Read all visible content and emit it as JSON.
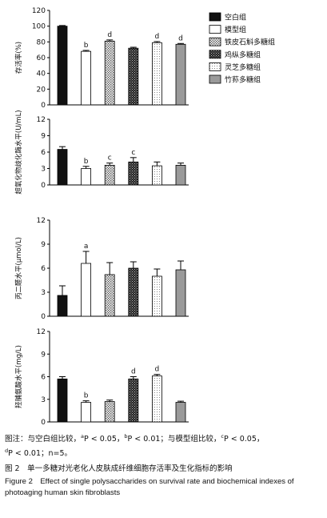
{
  "legend": [
    {
      "label": "空白组",
      "fill": "black"
    },
    {
      "label": "模型组",
      "fill": "white"
    },
    {
      "label": "铁皮石斛多糖组",
      "fill": "dots"
    },
    {
      "label": "鸡纵多糖组",
      "fill": "dense"
    },
    {
      "label": "灵芝多糖组",
      "fill": "finedots"
    },
    {
      "label": "竹荪多糖组",
      "fill": "gray"
    }
  ],
  "colors": {
    "black": "#111111",
    "gray": "#9a9a9a",
    "dots": "#b5b5b5",
    "dense": "#3a3a3a",
    "white": "#ffffff"
  },
  "chart_data": [
    {
      "type": "bar",
      "ylabel": "存活率(%)",
      "ylim": [
        0,
        120
      ],
      "yticks": [
        0,
        20,
        40,
        60,
        80,
        100,
        120
      ],
      "values": [
        100,
        68,
        81,
        72,
        79,
        77
      ],
      "errors": [
        0.8,
        1.2,
        1.5,
        1.2,
        1.4,
        1.0
      ],
      "annotations": [
        "",
        "b",
        "d",
        "",
        "d",
        "d"
      ]
    },
    {
      "type": "bar",
      "ylabel": "超氧化物歧化酶水平(U/mL)",
      "ylim": [
        0,
        12
      ],
      "yticks": [
        0,
        3,
        6,
        9,
        12
      ],
      "values": [
        6.5,
        3.0,
        3.6,
        4.2,
        3.5,
        3.6
      ],
      "errors": [
        0.5,
        0.4,
        0.4,
        0.8,
        0.7,
        0.4
      ],
      "annotations": [
        "",
        "b",
        "c",
        "c",
        "",
        ""
      ]
    },
    {
      "type": "bar",
      "ylabel": "丙二醛水平(μmol/L)",
      "ylim": [
        0,
        12
      ],
      "yticks": [
        0,
        3,
        6,
        9,
        12
      ],
      "values": [
        2.6,
        6.6,
        5.2,
        6.0,
        5.0,
        5.8
      ],
      "errors": [
        1.2,
        1.5,
        1.5,
        0.8,
        0.9,
        1.1
      ],
      "annotations": [
        "",
        "a",
        "",
        "",
        "",
        ""
      ]
    },
    {
      "type": "bar",
      "ylabel": "羟脯氨酸水平(mg/L)",
      "ylim": [
        0,
        12
      ],
      "yticks": [
        0,
        3,
        6,
        9,
        12
      ],
      "values": [
        5.7,
        2.6,
        2.7,
        5.7,
        6.1,
        2.6
      ],
      "errors": [
        0.3,
        0.2,
        0.2,
        0.3,
        0.2,
        0.15
      ],
      "annotations": [
        "",
        "b",
        "",
        "d",
        "d",
        ""
      ]
    }
  ],
  "caption": {
    "note_prefix": "图注：与空白组比较，",
    "note_a": "a",
    "note_a_text": "P < 0.05，",
    "note_b": "b",
    "note_b_text": "P < 0.01；与模型组比较，",
    "note_c": "c",
    "note_c_text": "P < 0.05，",
    "note_d": "d",
    "note_d_text": "P < 0.01；n=5。",
    "title_zh": "图 2　单一多糖对光老化人皮肤成纤维细胞存活率及生化指标的影响",
    "title_en": "Figure 2　Effect of single polysaccharides on survival rate and biochemical indexes of photoaging human skin fibroblasts"
  }
}
